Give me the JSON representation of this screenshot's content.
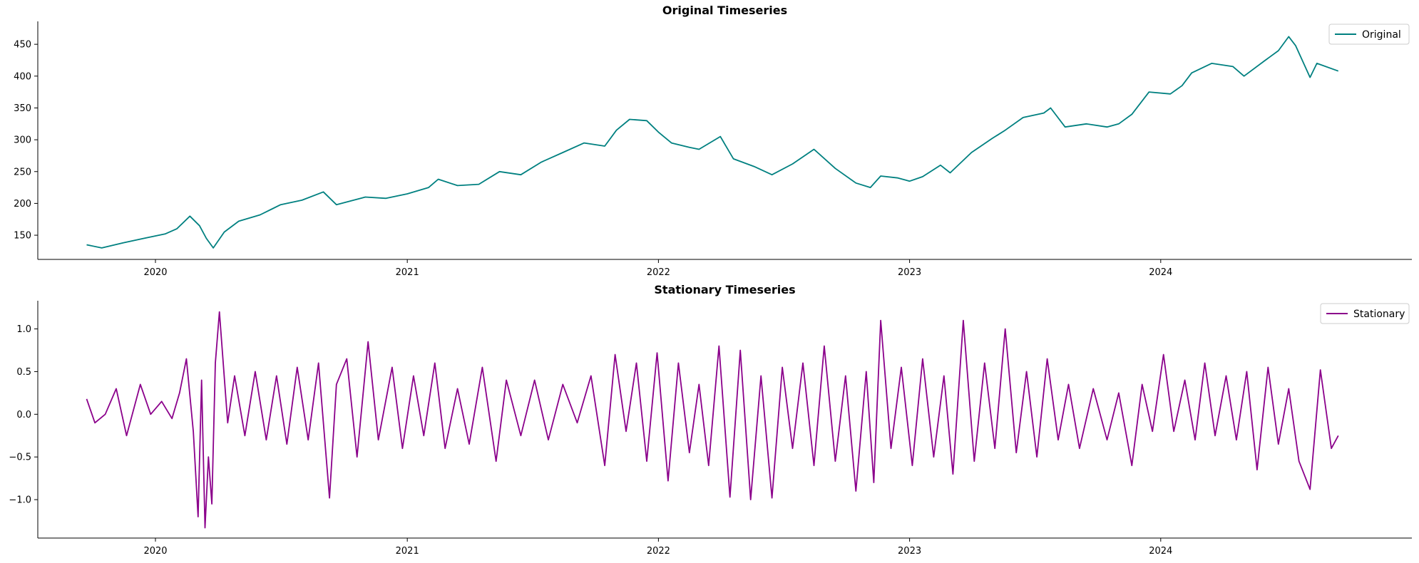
{
  "chart_data": [
    {
      "type": "line",
      "title": "Original Timeseries",
      "xlabel": "",
      "ylabel": "",
      "x_range": [
        "2019-07-14",
        "2024-12-31"
      ],
      "ylim": [
        112,
        486
      ],
      "x_ticks": [
        "2020",
        "2021",
        "2022",
        "2023",
        "2024"
      ],
      "y_ticks": [
        150,
        200,
        250,
        300,
        350,
        400,
        450
      ],
      "legend": {
        "position": "top-right"
      },
      "grid": false,
      "series": [
        {
          "name": "Original",
          "color": "#008080",
          "points": [
            [
              "2019-09-23",
              135
            ],
            [
              "2019-10-15",
              130
            ],
            [
              "2019-11-15",
              138
            ],
            [
              "2019-12-15",
              145
            ],
            [
              "2020-01-15",
              152
            ],
            [
              "2020-02-01",
              160
            ],
            [
              "2020-02-20",
              180
            ],
            [
              "2020-03-05",
              165
            ],
            [
              "2020-03-15",
              145
            ],
            [
              "2020-03-25",
              130
            ],
            [
              "2020-04-10",
              155
            ],
            [
              "2020-05-01",
              172
            ],
            [
              "2020-06-01",
              182
            ],
            [
              "2020-07-01",
              198
            ],
            [
              "2020-08-01",
              205
            ],
            [
              "2020-09-01",
              218
            ],
            [
              "2020-09-20",
              198
            ],
            [
              "2020-10-15",
              205
            ],
            [
              "2020-11-01",
              210
            ],
            [
              "2020-12-01",
              208
            ],
            [
              "2021-01-01",
              215
            ],
            [
              "2021-02-01",
              225
            ],
            [
              "2021-02-15",
              238
            ],
            [
              "2021-03-15",
              228
            ],
            [
              "2021-04-15",
              230
            ],
            [
              "2021-05-15",
              250
            ],
            [
              "2021-06-15",
              245
            ],
            [
              "2021-07-15",
              265
            ],
            [
              "2021-08-15",
              280
            ],
            [
              "2021-09-15",
              295
            ],
            [
              "2021-10-15",
              290
            ],
            [
              "2021-11-01",
              315
            ],
            [
              "2021-11-20",
              332
            ],
            [
              "2021-12-15",
              330
            ],
            [
              "2022-01-01",
              312
            ],
            [
              "2022-01-20",
              295
            ],
            [
              "2022-02-15",
              288
            ],
            [
              "2022-03-01",
              285
            ],
            [
              "2022-04-01",
              305
            ],
            [
              "2022-04-20",
              270
            ],
            [
              "2022-05-20",
              258
            ],
            [
              "2022-06-15",
              245
            ],
            [
              "2022-07-15",
              262
            ],
            [
              "2022-08-15",
              285
            ],
            [
              "2022-09-15",
              255
            ],
            [
              "2022-10-15",
              232
            ],
            [
              "2022-11-05",
              225
            ],
            [
              "2022-11-20",
              243
            ],
            [
              "2022-12-15",
              240
            ],
            [
              "2023-01-01",
              235
            ],
            [
              "2023-01-20",
              242
            ],
            [
              "2023-02-15",
              260
            ],
            [
              "2023-03-01",
              248
            ],
            [
              "2023-04-01",
              280
            ],
            [
              "2023-05-01",
              302
            ],
            [
              "2023-05-20",
              315
            ],
            [
              "2023-06-15",
              335
            ],
            [
              "2023-07-15",
              342
            ],
            [
              "2023-07-25",
              350
            ],
            [
              "2023-08-15",
              320
            ],
            [
              "2023-09-15",
              325
            ],
            [
              "2023-10-15",
              320
            ],
            [
              "2023-11-01",
              325
            ],
            [
              "2023-11-20",
              340
            ],
            [
              "2023-12-15",
              375
            ],
            [
              "2024-01-15",
              372
            ],
            [
              "2024-02-01",
              385
            ],
            [
              "2024-02-15",
              405
            ],
            [
              "2024-03-15",
              420
            ],
            [
              "2024-04-15",
              415
            ],
            [
              "2024-05-01",
              400
            ],
            [
              "2024-06-01",
              425
            ],
            [
              "2024-06-20",
              440
            ],
            [
              "2024-07-05",
              462
            ],
            [
              "2024-07-15",
              448
            ],
            [
              "2024-08-05",
              398
            ],
            [
              "2024-08-15",
              420
            ],
            [
              "2024-09-15",
              408
            ]
          ]
        }
      ]
    },
    {
      "type": "line",
      "title": "Stationary Timeseries",
      "xlabel": "",
      "ylabel": "",
      "x_range": [
        "2019-07-14",
        "2024-12-31"
      ],
      "ylim": [
        -1.45,
        1.33
      ],
      "x_ticks": [
        "2020",
        "2021",
        "2022",
        "2023",
        "2024"
      ],
      "y_ticks": [
        -1.0,
        -0.5,
        0.0,
        0.5,
        1.0
      ],
      "legend": {
        "position": "top-right"
      },
      "grid": false,
      "series": [
        {
          "name": "Stationary",
          "color": "#8b008b",
          "points": [
            [
              "2019-09-23",
              0.18
            ],
            [
              "2019-10-05",
              -0.1
            ],
            [
              "2019-10-20",
              0.0
            ],
            [
              "2019-11-05",
              0.3
            ],
            [
              "2019-11-20",
              -0.25
            ],
            [
              "2019-12-10",
              0.35
            ],
            [
              "2019-12-25",
              0.0
            ],
            [
              "2020-01-10",
              0.15
            ],
            [
              "2020-01-25",
              -0.05
            ],
            [
              "2020-02-05",
              0.25
            ],
            [
              "2020-02-15",
              0.65
            ],
            [
              "2020-02-25",
              -0.2
            ],
            [
              "2020-03-03",
              -1.2
            ],
            [
              "2020-03-08",
              0.4
            ],
            [
              "2020-03-13",
              -1.33
            ],
            [
              "2020-03-18",
              -0.5
            ],
            [
              "2020-03-23",
              -1.05
            ],
            [
              "2020-03-28",
              0.6
            ],
            [
              "2020-04-03",
              1.2
            ],
            [
              "2020-04-15",
              -0.1
            ],
            [
              "2020-04-25",
              0.45
            ],
            [
              "2020-05-10",
              -0.25
            ],
            [
              "2020-05-25",
              0.5
            ],
            [
              "2020-06-10",
              -0.3
            ],
            [
              "2020-06-25",
              0.45
            ],
            [
              "2020-07-10",
              -0.35
            ],
            [
              "2020-07-25",
              0.55
            ],
            [
              "2020-08-10",
              -0.3
            ],
            [
              "2020-08-25",
              0.6
            ],
            [
              "2020-09-10",
              -0.98
            ],
            [
              "2020-09-20",
              0.35
            ],
            [
              "2020-10-05",
              0.65
            ],
            [
              "2020-10-20",
              -0.5
            ],
            [
              "2020-11-05",
              0.85
            ],
            [
              "2020-11-20",
              -0.3
            ],
            [
              "2020-12-10",
              0.55
            ],
            [
              "2020-12-25",
              -0.4
            ],
            [
              "2021-01-10",
              0.45
            ],
            [
              "2021-01-25",
              -0.25
            ],
            [
              "2021-02-10",
              0.6
            ],
            [
              "2021-02-25",
              -0.4
            ],
            [
              "2021-03-15",
              0.3
            ],
            [
              "2021-04-01",
              -0.35
            ],
            [
              "2021-04-20",
              0.55
            ],
            [
              "2021-05-10",
              -0.55
            ],
            [
              "2021-05-25",
              0.4
            ],
            [
              "2021-06-15",
              -0.25
            ],
            [
              "2021-07-05",
              0.4
            ],
            [
              "2021-07-25",
              -0.3
            ],
            [
              "2021-08-15",
              0.35
            ],
            [
              "2021-09-05",
              -0.1
            ],
            [
              "2021-09-25",
              0.45
            ],
            [
              "2021-10-15",
              -0.6
            ],
            [
              "2021-10-30",
              0.7
            ],
            [
              "2021-11-15",
              -0.2
            ],
            [
              "2021-11-30",
              0.6
            ],
            [
              "2021-12-15",
              -0.55
            ],
            [
              "2021-12-30",
              0.72
            ],
            [
              "2022-01-15",
              -0.78
            ],
            [
              "2022-01-30",
              0.6
            ],
            [
              "2022-02-15",
              -0.45
            ],
            [
              "2022-03-01",
              0.35
            ],
            [
              "2022-03-15",
              -0.6
            ],
            [
              "2022-03-30",
              0.8
            ],
            [
              "2022-04-15",
              -0.97
            ],
            [
              "2022-04-30",
              0.75
            ],
            [
              "2022-05-15",
              -1.0
            ],
            [
              "2022-05-30",
              0.45
            ],
            [
              "2022-06-15",
              -0.98
            ],
            [
              "2022-06-30",
              0.55
            ],
            [
              "2022-07-15",
              -0.4
            ],
            [
              "2022-07-30",
              0.6
            ],
            [
              "2022-08-15",
              -0.6
            ],
            [
              "2022-08-30",
              0.8
            ],
            [
              "2022-09-15",
              -0.55
            ],
            [
              "2022-09-30",
              0.45
            ],
            [
              "2022-10-15",
              -0.9
            ],
            [
              "2022-10-30",
              0.5
            ],
            [
              "2022-11-10",
              -0.8
            ],
            [
              "2022-11-20",
              1.1
            ],
            [
              "2022-12-05",
              -0.4
            ],
            [
              "2022-12-20",
              0.55
            ],
            [
              "2023-01-05",
              -0.6
            ],
            [
              "2023-01-20",
              0.65
            ],
            [
              "2023-02-05",
              -0.5
            ],
            [
              "2023-02-20",
              0.45
            ],
            [
              "2023-03-05",
              -0.7
            ],
            [
              "2023-03-20",
              1.1
            ],
            [
              "2023-04-05",
              -0.55
            ],
            [
              "2023-04-20",
              0.6
            ],
            [
              "2023-05-05",
              -0.4
            ],
            [
              "2023-05-20",
              1.0
            ],
            [
              "2023-06-05",
              -0.45
            ],
            [
              "2023-06-20",
              0.5
            ],
            [
              "2023-07-05",
              -0.5
            ],
            [
              "2023-07-20",
              0.65
            ],
            [
              "2023-08-05",
              -0.3
            ],
            [
              "2023-08-20",
              0.35
            ],
            [
              "2023-09-05",
              -0.4
            ],
            [
              "2023-09-25",
              0.3
            ],
            [
              "2023-10-15",
              -0.3
            ],
            [
              "2023-11-01",
              0.25
            ],
            [
              "2023-11-20",
              -0.6
            ],
            [
              "2023-12-05",
              0.35
            ],
            [
              "2023-12-20",
              -0.2
            ],
            [
              "2024-01-05",
              0.7
            ],
            [
              "2024-01-20",
              -0.2
            ],
            [
              "2024-02-05",
              0.4
            ],
            [
              "2024-02-20",
              -0.3
            ],
            [
              "2024-03-05",
              0.6
            ],
            [
              "2024-03-20",
              -0.25
            ],
            [
              "2024-04-05",
              0.45
            ],
            [
              "2024-04-20",
              -0.3
            ],
            [
              "2024-05-05",
              0.5
            ],
            [
              "2024-05-20",
              -0.65
            ],
            [
              "2024-06-05",
              0.55
            ],
            [
              "2024-06-20",
              -0.35
            ],
            [
              "2024-07-05",
              0.3
            ],
            [
              "2024-07-20",
              -0.55
            ],
            [
              "2024-08-05",
              -0.88
            ],
            [
              "2024-08-20",
              0.52
            ],
            [
              "2024-09-05",
              -0.4
            ],
            [
              "2024-09-15",
              -0.25
            ]
          ]
        }
      ]
    }
  ]
}
